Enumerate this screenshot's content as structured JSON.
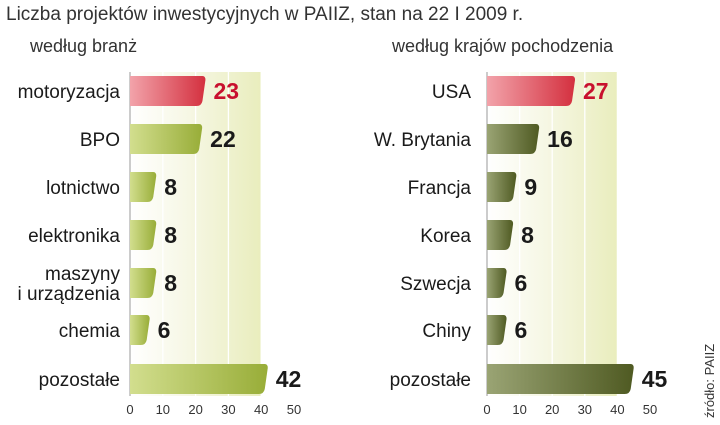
{
  "title": "Liczba projektów inwestycyjnych w PAIIZ, stan na 22 I 2009 r.",
  "source": "źródło: PAIIZ",
  "colors": {
    "highlight": "#d8404f",
    "highlight_value": "#c8102e",
    "left_bar": "#a4b944",
    "right_bar": "#5f6b2c",
    "value_text": "#1a1a1a",
    "panel_bg": "#eef1c4"
  },
  "chart_data": [
    {
      "type": "bar",
      "orientation": "horizontal",
      "subtitle": "według branż",
      "categories": [
        "motoryzacja",
        "BPO",
        "lotnictwo",
        "elektronika",
        "maszyny\ni urządzenia",
        "chemia",
        "pozostałe"
      ],
      "values": [
        23,
        22,
        8,
        8,
        8,
        6,
        42
      ],
      "highlight_index": 0,
      "xlim": [
        0,
        50
      ],
      "xticks": [
        "0",
        "10",
        "20",
        "30",
        "40",
        "50"
      ],
      "grid": true
    },
    {
      "type": "bar",
      "orientation": "horizontal",
      "subtitle": "według krajów pochodzenia",
      "categories": [
        "USA",
        "W. Brytania",
        "Francja",
        "Korea",
        "Szwecja",
        "Chiny",
        "pozostałe"
      ],
      "values": [
        27,
        16,
        9,
        8,
        6,
        6,
        45
      ],
      "highlight_index": 0,
      "xlim": [
        0,
        50
      ],
      "xticks": [
        "0",
        "10",
        "20",
        "30",
        "40",
        "50"
      ],
      "grid": true
    }
  ]
}
